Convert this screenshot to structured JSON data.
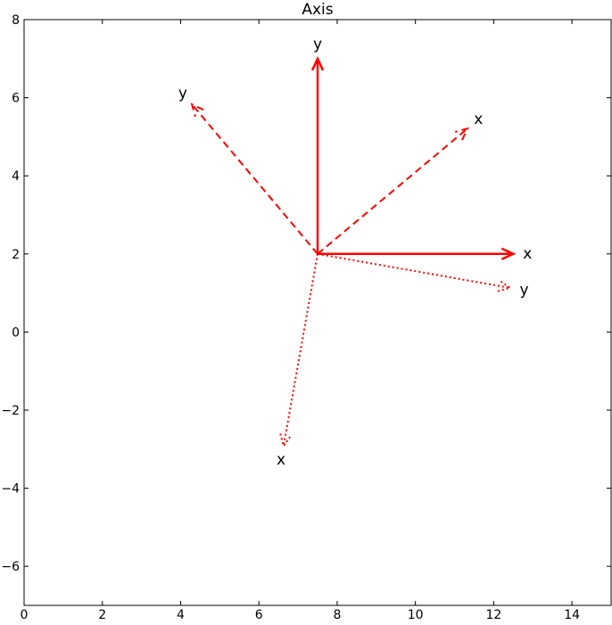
{
  "chart_data": {
    "type": "quiver",
    "title": "Axis",
    "xlabel": "",
    "ylabel": "",
    "xlim": [
      0,
      15
    ],
    "ylim": [
      -7,
      8
    ],
    "xticks": [
      0,
      2,
      4,
      6,
      8,
      10,
      12,
      14
    ],
    "yticks": [
      -6,
      -4,
      -2,
      0,
      2,
      4,
      6,
      8
    ],
    "grid": false,
    "color": "#ff0000",
    "arrows": [
      {
        "label": "x",
        "linestyle": "solid",
        "start": [
          7.5,
          2
        ],
        "end": [
          12.5,
          2
        ]
      },
      {
        "label": "y",
        "linestyle": "solid",
        "start": [
          7.5,
          2
        ],
        "end": [
          7.5,
          7
        ]
      },
      {
        "label": "x",
        "linestyle": "dashed",
        "start": [
          7.5,
          2
        ],
        "end": [
          11.33,
          5.21
        ]
      },
      {
        "label": "y",
        "linestyle": "dashed",
        "start": [
          7.5,
          2
        ],
        "end": [
          4.29,
          5.83
        ]
      },
      {
        "label": "x",
        "linestyle": "dotted",
        "start": [
          7.5,
          2
        ],
        "end": [
          6.63,
          -2.92
        ]
      },
      {
        "label": "y",
        "linestyle": "dotted",
        "start": [
          7.5,
          2
        ],
        "end": [
          12.42,
          1.13
        ]
      }
    ]
  }
}
